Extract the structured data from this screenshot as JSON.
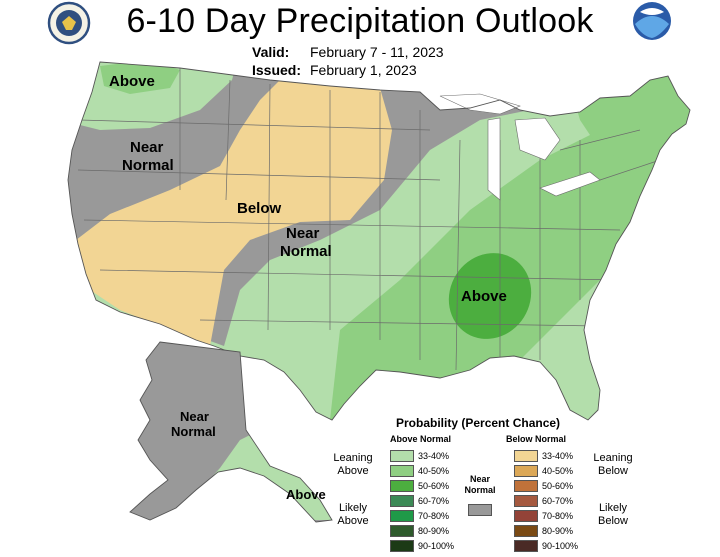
{
  "title": "6-10 Day Precipitation Outlook",
  "valid": {
    "label": "Valid:",
    "value": "February 7 - 11, 2023"
  },
  "issued": {
    "label": "Issued:",
    "value": "February 1, 2023"
  },
  "logos": {
    "left": "doc-seal-icon",
    "right": "noaa-logo-icon"
  },
  "map_labels": {
    "above_nw": "Above",
    "near_normal_nw_1": "Near",
    "near_normal_nw_2": "Normal",
    "below": "Below",
    "near_normal_c_1": "Near",
    "near_normal_c_2": "Normal",
    "above_se": "Above",
    "ak_near_1": "Near",
    "ak_near_2": "Normal",
    "ak_above": "Above"
  },
  "legend": {
    "title": "Probability (Percent Chance)",
    "above_header": "Above Normal",
    "below_header": "Below Normal",
    "leaning_above": [
      "Leaning",
      "Above"
    ],
    "likely_above": [
      "Likely",
      "Above"
    ],
    "leaning_below": [
      "Leaning",
      "Below"
    ],
    "likely_below": [
      "Likely",
      "Below"
    ],
    "near_normal": [
      "Near",
      "Normal"
    ],
    "above": [
      {
        "range": "33-40%",
        "color": "#b3deab"
      },
      {
        "range": "40-50%",
        "color": "#8fcf82"
      },
      {
        "range": "50-60%",
        "color": "#4cae3f"
      },
      {
        "range": "60-70%",
        "color": "#3c8a56"
      },
      {
        "range": "70-80%",
        "color": "#1f9a48"
      },
      {
        "range": "80-90%",
        "color": "#2e5a2c"
      },
      {
        "range": "90-100%",
        "color": "#1c3a16"
      }
    ],
    "below": [
      {
        "range": "33-40%",
        "color": "#f2d594"
      },
      {
        "range": "40-50%",
        "color": "#dca857"
      },
      {
        "range": "50-60%",
        "color": "#c0723a"
      },
      {
        "range": "60-70%",
        "color": "#a5593f"
      },
      {
        "range": "70-80%",
        "color": "#934338"
      },
      {
        "range": "80-90%",
        "color": "#7a4a14"
      },
      {
        "range": "90-100%",
        "color": "#4a2a25"
      }
    ],
    "near_normal_color": "#999999"
  }
}
